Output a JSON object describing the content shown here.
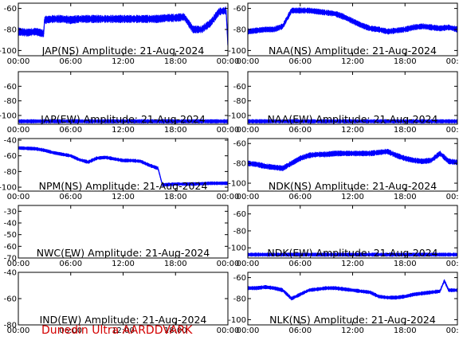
{
  "footer": "Dunedin Ultra AARDDVARK",
  "colors": {
    "series": "#0000ff",
    "footer": "#d40000"
  },
  "chart_data": [
    {
      "type": "line",
      "title": "JAP(NS) Amplitude: 21-Aug-2024",
      "xticks": [
        "00:00",
        "06:00",
        "12:00",
        "18:00",
        "00:00"
      ],
      "ylim": [
        -105,
        -55
      ],
      "yticks": [
        -100,
        -80,
        -60
      ],
      "series": [
        {
          "x": [
            0,
            1,
            2,
            2.9,
            3,
            4,
            5,
            6,
            7,
            8,
            9,
            10,
            11,
            12,
            13,
            14,
            15,
            16,
            17,
            18,
            19,
            20,
            21,
            22,
            23,
            23.8,
            24
          ],
          "y": [
            -82,
            -83,
            -82,
            -84,
            -71,
            -70,
            -70,
            -71,
            -70,
            -70,
            -70,
            -70,
            -70,
            -70,
            -70,
            -70,
            -70,
            -70,
            -69,
            -69,
            -68,
            -80,
            -80,
            -74,
            -63,
            -62,
            -95
          ],
          "spread": 8
        }
      ]
    },
    {
      "type": "line",
      "title": "NAA(NS) Amplitude: 21-Aug-2024",
      "xticks": [
        "00:00",
        "06:00",
        "12:00",
        "18:00",
        "00:00"
      ],
      "ylim": [
        -105,
        -55
      ],
      "yticks": [
        -100,
        -80,
        -60
      ],
      "series": [
        {
          "x": [
            0,
            1,
            2,
            3,
            4,
            5,
            6,
            7,
            8,
            9,
            10,
            11,
            12,
            13,
            14,
            15,
            16,
            17,
            18,
            19,
            20,
            21,
            22,
            23,
            24
          ],
          "y": [
            -82,
            -81,
            -80,
            -80,
            -77,
            -62,
            -62,
            -62,
            -63,
            -64,
            -65,
            -68,
            -72,
            -76,
            -79,
            -80,
            -82,
            -81,
            -80,
            -78,
            -77,
            -78,
            -79,
            -78,
            -80
          ],
          "spread": 6
        }
      ]
    },
    {
      "type": "line",
      "title": "JAP(EW) Amplitude: 21-Aug-2024",
      "xticks": [
        "00:00",
        "06:00",
        "12:00",
        "18:00",
        "00:00"
      ],
      "ylim": [
        -112,
        -40
      ],
      "yticks": [
        -100,
        -80,
        -60
      ],
      "series": [
        {
          "x": [
            0,
            6,
            12,
            18,
            24
          ],
          "y": [
            -108,
            -108,
            -108,
            -108,
            -108
          ],
          "spread": 6
        }
      ]
    },
    {
      "type": "line",
      "title": "NAA(EW) Amplitude: 21-Aug-2024",
      "xticks": [
        "00:00",
        "06:00",
        "12:00",
        "18:00",
        "00:00"
      ],
      "ylim": [
        -112,
        -40
      ],
      "yticks": [
        -100,
        -80,
        -60
      ],
      "series": [
        {
          "x": [
            0,
            6,
            12,
            18,
            24
          ],
          "y": [
            -108,
            -108,
            -108,
            -108,
            -108
          ],
          "spread": 6
        }
      ]
    },
    {
      "type": "line",
      "title": "NPM(NS) Amplitude: 21-Aug-2024",
      "xticks": [
        "00:00",
        "06:00",
        "12:00",
        "18:00",
        "00:00"
      ],
      "ylim": [
        -105,
        -38
      ],
      "yticks": [
        -100,
        -80,
        -60,
        -40
      ],
      "series": [
        {
          "x": [
            0,
            2,
            3,
            4,
            5,
            6,
            7,
            8,
            9,
            10,
            11,
            12,
            13,
            14,
            15,
            16,
            16.5,
            18,
            20,
            22,
            24
          ],
          "y": [
            -50,
            -51,
            -53,
            -56,
            -58,
            -60,
            -65,
            -68,
            -63,
            -62,
            -64,
            -66,
            -66,
            -67,
            -72,
            -76,
            -97,
            -96,
            -96,
            -95,
            -95
          ],
          "spread": 5
        }
      ]
    },
    {
      "type": "line",
      "title": "NDK(NS) Amplitude: 21-Aug-2024",
      "xticks": [
        "00:00",
        "06:00",
        "12:00",
        "18:00",
        "00:00"
      ],
      "ylim": [
        -108,
        -55
      ],
      "yticks": [
        -100,
        -80,
        -60
      ],
      "series": [
        {
          "x": [
            0,
            1,
            2,
            3,
            4,
            5,
            6,
            7,
            8,
            9,
            10,
            11,
            12,
            13,
            14,
            15,
            16,
            17,
            18,
            19,
            20,
            21,
            22,
            23,
            24
          ],
          "y": [
            -80,
            -81,
            -83,
            -84,
            -85,
            -80,
            -75,
            -72,
            -71,
            -71,
            -70,
            -70,
            -70,
            -70,
            -70,
            -69,
            -68,
            -72,
            -75,
            -77,
            -78,
            -77,
            -70,
            -78,
            -79
          ],
          "spread": 6
        }
      ]
    },
    {
      "type": "line",
      "title": "NWC(EW) Amplitude: 21-Aug-2024",
      "xticks": [
        "00:00",
        "06:00",
        "12:00",
        "18:00",
        "00:00"
      ],
      "ylim": [
        -70,
        -25
      ],
      "yticks": [
        -70,
        -60,
        -50,
        -40,
        -30
      ],
      "series": []
    },
    {
      "type": "line",
      "title": "NDK(EW) Amplitude: 21-Aug-2024",
      "xticks": [
        "00:00",
        "06:00",
        "12:00",
        "18:00",
        "00:00"
      ],
      "ylim": [
        -112,
        -50
      ],
      "yticks": [
        -100,
        -80,
        -60
      ],
      "series": [
        {
          "x": [
            0,
            6,
            12,
            18,
            24
          ],
          "y": [
            -108,
            -108,
            -108,
            -108,
            -108
          ],
          "spread": 5
        }
      ]
    },
    {
      "type": "line",
      "title": "IND(EW) Amplitude: 21-Aug-2024",
      "xticks": [
        "00:00",
        "06:00",
        "12:00",
        "18:00",
        "00:00"
      ],
      "ylim": [
        -80,
        -40
      ],
      "yticks": [
        -80,
        -60,
        -40
      ],
      "series": []
    },
    {
      "type": "line",
      "title": "NLK(NS) Amplitude: 21-Aug-2024",
      "xticks": [
        "00:00",
        "06:00",
        "12:00",
        "18:00",
        "00:00"
      ],
      "ylim": [
        -105,
        -55
      ],
      "yticks": [
        -100,
        -80,
        -60
      ],
      "series": [
        {
          "x": [
            0,
            1,
            2,
            3,
            4,
            5,
            6,
            7,
            8,
            9,
            10,
            11,
            12,
            13,
            14,
            15,
            16,
            17,
            18,
            19,
            20,
            21,
            22,
            22.5,
            23,
            24
          ],
          "y": [
            -70,
            -70,
            -69,
            -70,
            -72,
            -80,
            -76,
            -72,
            -71,
            -70,
            -70,
            -71,
            -72,
            -73,
            -74,
            -78,
            -79,
            -79,
            -78,
            -76,
            -75,
            -74,
            -73,
            -63,
            -72,
            -72
          ],
          "spread": 4
        }
      ]
    }
  ]
}
